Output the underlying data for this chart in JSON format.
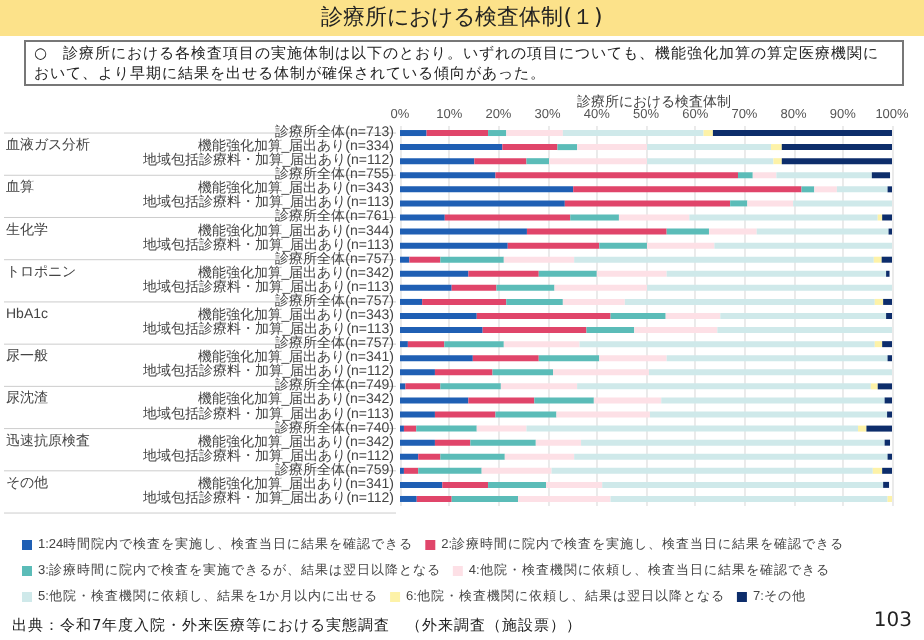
{
  "chart_data": {
    "type": "bar",
    "orientation": "horizontal",
    "stacked": true,
    "title": "診療所における検査体制(１)",
    "subtitle": "○　診療所における各検査項目の実施体制は以下のとおり。いずれの項目についても、機能強化加算の算定医療機関において、より早期に結果を出せる体制が確保されている傾向があった。",
    "annotations": [
      "診療所における検査体制",
      "血液ガス分析",
      "血算",
      "生化学",
      "トロポニン",
      "HbA1c",
      "尿一般",
      "尿沈渣",
      "迅速抗原検査",
      "その他",
      "出典：令和7年度入院・外来医療等における実態調査　（外来調査（施設票））",
      "103"
    ],
    "categories": [
      "診療所全体(n=713)",
      "機能強化加算_届出あり(n=334)",
      "地域包括診療料・加算_届出あり(n=112)",
      "診療所全体(n=755)",
      "機能強化加算_届出あり(n=343)",
      "地域包括診療料・加算_届出あり(n=113)",
      "診療所全体(n=761)",
      "機能強化加算_届出あり(n=344)",
      "地域包括診療料・加算_届出あり(n=113)",
      "診療所全体(n=757)",
      "機能強化加算_届出あり(n=342)",
      "地域包括診療料・加算_届出あり(n=113)",
      "診療所全体(n=757)",
      "機能強化加算_届出あり(n=343)",
      "地域包括診療料・加算_届出あり(n=113)",
      "診療所全体(n=757)",
      "機能強化加算_届出あり(n=341)",
      "地域包括診療料・加算_届出あり(n=112)",
      "診療所全体(n=749)",
      "機能強化加算_届出あり(n=342)",
      "地域包括診療料・加算_届出あり(n=113)",
      "診療所全体(n=740)",
      "機能強化加算_届出あり(n=342)",
      "地域包括診療料・加算_届出あり(n=112)",
      "診療所全体(n=759)",
      "機能強化加算_届出あり(n=341)",
      "地域包括診療料・加算_届出あり(n=112)"
    ],
    "series": [
      {
        "name": "1:24時間院内で検査を実施し、検査当日に結果を確認できる",
        "color": "#1f5fb4",
        "values": [
          5.4,
          20.8,
          15.1,
          19.4,
          35.2,
          33.5,
          9.1,
          25.8,
          21.9,
          1.9,
          13.9,
          10.5,
          4.5,
          15.6,
          16.8,
          1.6,
          14.8,
          7.1,
          1.1,
          13.9,
          7.1,
          0.8,
          7.1,
          3.7,
          0.8,
          8.6,
          3.4
        ]
      },
      {
        "name": "2:診療時間に院内で検査を実施し、検査当日に結果を確認できる",
        "color": "#e0456a",
        "values": [
          12.5,
          11.2,
          10.6,
          49.3,
          46.4,
          33.6,
          25.5,
          28.4,
          18.6,
          6.3,
          14.3,
          9.1,
          17.1,
          27.2,
          21.1,
          7.4,
          13.4,
          11.7,
          7.1,
          13.4,
          12.3,
          2.5,
          7.2,
          4.5,
          2.9,
          9.3,
          7.1
        ]
      },
      {
        "name": "3:診療時間に院内で検査を実施できるが、結果は翌日以降となる",
        "color": "#5bbcb8",
        "values": [
          3.7,
          4.0,
          4.6,
          3.0,
          2.6,
          3.5,
          9.9,
          8.6,
          9.7,
          12.9,
          11.8,
          11.8,
          11.5,
          11.2,
          9.7,
          12.1,
          12.3,
          12.3,
          12.3,
          12.1,
          12.4,
          12.3,
          13.3,
          13.1,
          12.9,
          11.8,
          13.5
        ]
      },
      {
        "name": "4:他院・検査機関に依頼し、検査当日に結果を確認できる",
        "color": "#fde0e6",
        "values": [
          11.5,
          14.2,
          19.9,
          4.8,
          4.6,
          9.3,
          14.3,
          9.7,
          13.7,
          14.3,
          14.2,
          18.8,
          12.6,
          11.1,
          16.9,
          15.4,
          13.7,
          19.5,
          15.5,
          13.7,
          19.0,
          10.1,
          9.2,
          14.1,
          14.2,
          11.4,
          18.8
        ]
      },
      {
        "name": "5:他院・検査機関に依頼し、結果を1か月以内に出せる",
        "color": "#cfe9ea",
        "values": [
          28.6,
          25.2,
          25.7,
          19.4,
          10.3,
          20.1,
          38.3,
          26.8,
          36.1,
          60.9,
          44.6,
          49.8,
          50.8,
          33.7,
          35.5,
          60.0,
          44.9,
          49.4,
          59.7,
          45.4,
          48.2,
          67.4,
          61.7,
          63.7,
          65.3,
          57.1,
          56.3
        ]
      },
      {
        "name": "6:他院・検査機関に依頼し、結果は翌日以降となる",
        "color": "#fdf2a8",
        "values": [
          1.9,
          2.2,
          1.7,
          null,
          0,
          0,
          0.9,
          0,
          0,
          1.6,
          null,
          0,
          1.7,
          0,
          0,
          1.5,
          0,
          0,
          1.4,
          0,
          0,
          1.7,
          null,
          0,
          1.9,
          null,
          0.9
        ]
      },
      {
        "name": "7:その他",
        "color": "#0d2d6b",
        "values": [
          36.4,
          22.4,
          22.4,
          3.7,
          0.9,
          0,
          2.0,
          0.7,
          0,
          2.1,
          0.7,
          0,
          1.8,
          1.2,
          0,
          2.0,
          0.9,
          0,
          2.9,
          1.5,
          1.0,
          5.2,
          1.1,
          0.9,
          2.0,
          1.2,
          0
        ]
      }
    ],
    "xlim": [
      0,
      100
    ],
    "xticks": [
      {
        "value": 0,
        "label": "0%"
      },
      {
        "value": 10,
        "label": "10%"
      },
      {
        "value": 20,
        "label": "20%"
      },
      {
        "value": 30,
        "label": "30%"
      },
      {
        "value": 40,
        "label": "40%"
      },
      {
        "value": 50,
        "label": "50%"
      },
      {
        "value": 60,
        "label": "60%"
      },
      {
        "value": 70,
        "label": "70%"
      },
      {
        "value": 80,
        "label": "80%"
      },
      {
        "value": 90,
        "label": "90%"
      },
      {
        "value": 100,
        "label": "100%"
      }
    ],
    "grid": "x",
    "legend": "bottom"
  }
}
